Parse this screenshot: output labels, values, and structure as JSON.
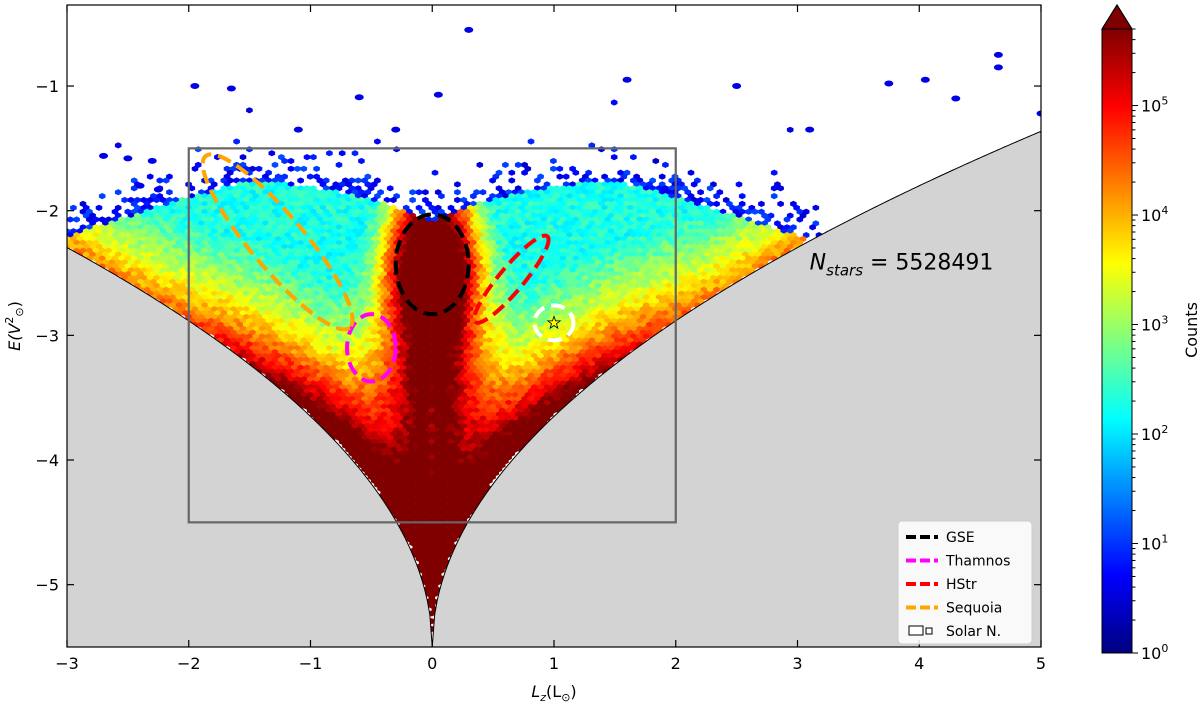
{
  "chart_data": {
    "type": "heatmap",
    "xlabel_main": "L",
    "xlabel_sub": "z",
    "xlabel_unit": "(L",
    "xlabel_sun": "⊙",
    "xlabel_close": ")",
    "ylabel_main": "E(V",
    "ylabel_sup": "2",
    "ylabel_sun": "⊙",
    "ylabel_close": ")",
    "xlim": [
      -3,
      5
    ],
    "ylim": [
      -5.5,
      -0.35
    ],
    "xticks": [
      -3,
      -2,
      -1,
      0,
      1,
      2,
      3,
      4,
      5
    ],
    "xtick_labels": [
      "−3",
      "−2",
      "−1",
      "0",
      "1",
      "2",
      "3",
      "4",
      "5"
    ],
    "yticks": [
      -5,
      -4,
      -3,
      -2,
      -1
    ],
    "ytick_labels": [
      "−5",
      "−4",
      "−3",
      "−2",
      "−1"
    ],
    "annotation": {
      "main": "N",
      "sub": "stars",
      "rest": " = 5528491",
      "x": 3.1,
      "y": -2.47
    },
    "selection_box": {
      "x": [
        -2,
        2
      ],
      "y": [
        -4.5,
        -1.5
      ]
    },
    "solar_position": {
      "x": 1.0,
      "y": -2.9
    },
    "colorbar": {
      "label": "Counts",
      "scale": "log",
      "range": [
        1,
        500000
      ],
      "tick_base": "10",
      "tick_exponents": [
        "0",
        "1",
        "2",
        "3",
        "4",
        "5"
      ]
    },
    "legend": {
      "position": "lower-right",
      "entries": [
        {
          "label": "GSE",
          "color": "#000000",
          "style": "dashed"
        },
        {
          "label": "Thamnos",
          "color": "#ff00ff",
          "style": "dashed"
        },
        {
          "label": "HStr",
          "color": "#ff0000",
          "style": "dashed"
        },
        {
          "label": "Sequoia",
          "color": "#ffa500",
          "style": "dashed"
        },
        {
          "label": "Solar N.",
          "color": "#ffffff",
          "style": "patch"
        }
      ]
    },
    "regions": [
      {
        "name": "GSE",
        "color": "#000000",
        "cx": 0.0,
        "cy": -2.43,
        "rx": 0.3,
        "ry": 0.4,
        "angle": 0
      },
      {
        "name": "Thamnos",
        "color": "#ff00ff",
        "cx": -0.5,
        "cy": -3.1,
        "rx": 0.2,
        "ry": 0.27,
        "angle": 0
      },
      {
        "name": "HStr",
        "color": "#ff0000",
        "cx": 0.65,
        "cy": -2.55,
        "rx": 0.46,
        "ry": 0.1,
        "angle": -50
      },
      {
        "name": "Sequoia",
        "color": "#ffa500",
        "cx": -1.27,
        "cy": -2.25,
        "rx": 0.92,
        "ry": 0.22,
        "angle": 50
      },
      {
        "name": "Solar N.",
        "color": "#ffffff",
        "cx": 1.0,
        "cy": -2.9,
        "rx": 0.16,
        "ry": 0.14,
        "angle": 0
      }
    ],
    "colors": {
      "forbidden_region": "#d3d3d3",
      "box": "#666666",
      "sun_marker": "#ffff00"
    }
  }
}
